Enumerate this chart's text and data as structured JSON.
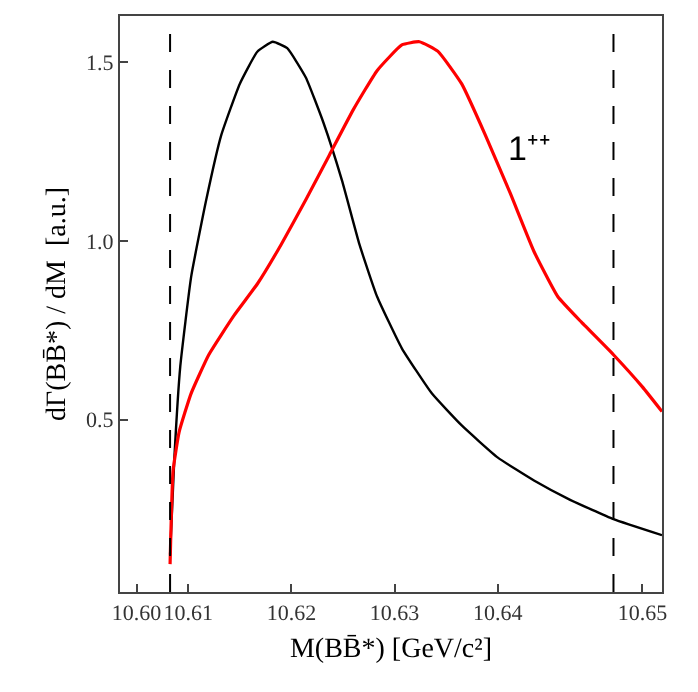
{
  "chart_data": {
    "type": "line",
    "xlabel": "M(BB̄*) [GeV/c²]",
    "ylabel": "dΓ(BB̄*) / dM  [a.u.]",
    "xlim": [
      10.6034,
      10.6559
    ],
    "ylim": [
      0.018,
      1.63
    ],
    "xticks": [
      {
        "value": 10.605,
        "label": "10.60"
      },
      10.61,
      10.62,
      10.63,
      10.64,
      {
        "value": 10.654,
        "label": "10.65"
      }
    ],
    "yticks": [
      0.5,
      {
        "value": 1.0,
        "label": "1.0"
      },
      1.5
    ],
    "marker": "none",
    "line_style": "solid",
    "series": [
      {
        "color": "#000000",
        "x": [
          10.60825,
          10.60866,
          10.60924,
          10.61029,
          10.61175,
          10.6132,
          10.615,
          10.6167,
          10.6182,
          10.6196,
          10.6214,
          10.6231,
          10.6249,
          10.6266,
          10.6283,
          10.6307,
          10.6336,
          10.6365,
          10.64,
          10.6435,
          10.647,
          10.6512,
          10.6559
        ],
        "values": [
          0.123,
          0.39,
          0.65,
          0.9,
          1.115,
          1.296,
          1.44,
          1.53,
          1.558,
          1.54,
          1.458,
          1.332,
          1.17,
          0.99,
          0.845,
          0.7,
          0.574,
          0.484,
          0.394,
          0.33,
          0.276,
          0.222,
          0.177
        ]
      },
      {
        "color": "#ff0000",
        "x": [
          10.60825,
          10.60854,
          10.60913,
          10.61029,
          10.612,
          10.6144,
          10.6167,
          10.619,
          10.6214,
          10.6237,
          10.626,
          10.6283,
          10.6307,
          10.6324,
          10.6342,
          10.6365,
          10.6388,
          10.6412,
          10.6435,
          10.6458,
          10.6481,
          10.6512,
          10.654,
          10.6559
        ],
        "values": [
          0.096,
          0.357,
          0.466,
          0.574,
          0.682,
          0.79,
          0.88,
          0.99,
          1.116,
          1.242,
          1.368,
          1.477,
          1.549,
          1.558,
          1.531,
          1.44,
          1.296,
          1.134,
          0.971,
          0.845,
          0.773,
          0.682,
          0.592,
          0.523
        ]
      }
    ],
    "ref_lines": [
      {
        "axis": "x",
        "value": 10.60825,
        "color": "#000000",
        "line_style": "dashed"
      },
      {
        "axis": "x",
        "value": 10.6512,
        "color": "#000000",
        "line_style": "dashed"
      }
    ],
    "annotations": [
      "1⁺⁺"
    ]
  }
}
